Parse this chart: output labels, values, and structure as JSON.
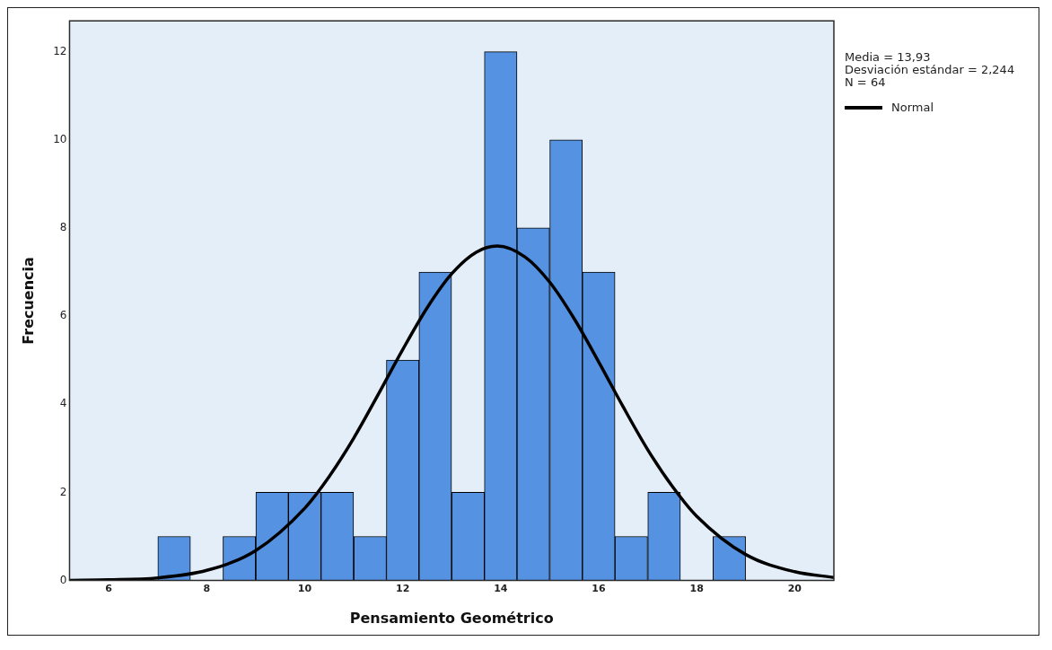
{
  "chart_data": {
    "type": "histogram",
    "xlabel": "Pensamiento Geométrico",
    "ylabel": "Frecuencia",
    "bins": [
      7,
      7.67,
      8.33,
      9,
      9.67,
      10.33,
      11,
      11.67,
      12.33,
      13,
      13.67,
      14.33,
      15,
      15.67,
      16.33,
      17,
      17.67,
      18.33,
      19
    ],
    "values": [
      1,
      0,
      1,
      2,
      2,
      2,
      1,
      5,
      7,
      2,
      12,
      8,
      10,
      7,
      1,
      2,
      0,
      1
    ],
    "color": "#5592e2",
    "series": [
      {
        "name": "Normal",
        "type": "line",
        "color": "#000000",
        "x": [
          5.2,
          6,
          7,
          8,
          9,
          10,
          10.5,
          11,
          11.5,
          12,
          12.5,
          13,
          13.5,
          13.93,
          14.5,
          15,
          15.5,
          16,
          16.5,
          17,
          17.5,
          18,
          19,
          20,
          20.8
        ],
        "values": [
          0.004,
          0.015,
          0.06,
          0.23,
          0.68,
          1.64,
          2.36,
          3.23,
          4.22,
          5.24,
          6.19,
          6.96,
          7.45,
          7.59,
          7.34,
          6.77,
          5.94,
          4.96,
          3.94,
          2.97,
          2.14,
          1.46,
          0.59,
          0.2,
          0.07
        ]
      }
    ],
    "marker": "none",
    "xlim": [
      5.2,
      20.8
    ],
    "xticks": [
      6,
      8,
      10,
      12,
      14,
      16,
      18,
      20
    ],
    "ylim": [
      0,
      12.7
    ],
    "yticks": [
      0,
      2,
      4,
      6,
      8,
      10,
      12
    ],
    "grid": false,
    "legend": "right",
    "annotations": [
      "Media = 13,93",
      "Desviación estándar = 2,244",
      "N = 64"
    ]
  }
}
